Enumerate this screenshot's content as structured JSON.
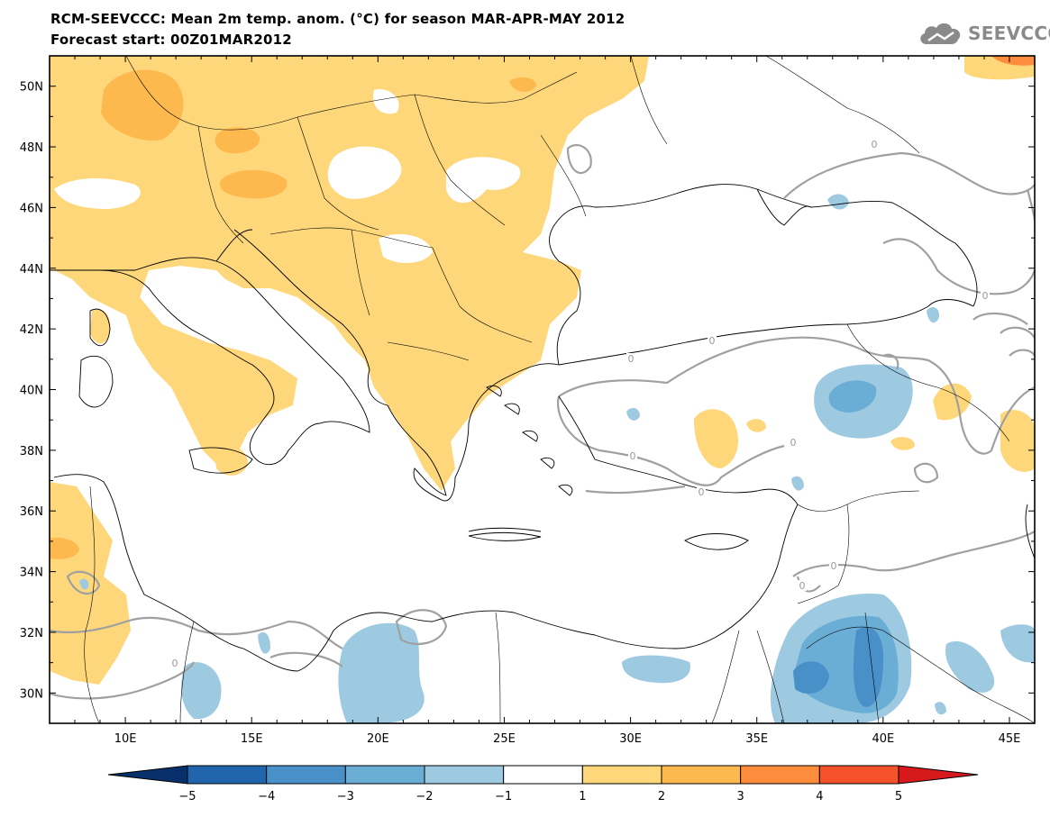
{
  "header": {
    "title_line1": "RCM-SEEVCCC: Mean 2m temp. anom. (°C) for season MAR-APR-MAY 2012",
    "title_line2": "Forecast start: 00Z01MAR2012"
  },
  "logo": {
    "text": "SEEVCCC",
    "icon": "cloud-icon",
    "color": "#8a8a8a"
  },
  "map": {
    "lon_range": [
      7,
      46
    ],
    "lat_range": [
      29,
      51
    ],
    "y_ticks": [
      "50N",
      "48N",
      "46N",
      "44N",
      "42N",
      "40N",
      "38N",
      "36N",
      "34N",
      "32N",
      "30N"
    ],
    "x_ticks": [
      "10E",
      "15E",
      "20E",
      "25E",
      "30E",
      "35E",
      "40E",
      "45E"
    ],
    "contour_label": "0",
    "contour_color": "#a0a0a0",
    "coast_color": "#000000"
  },
  "colorbar": {
    "labels": [
      "−5",
      "−4",
      "−3",
      "−2",
      "−1",
      "1",
      "2",
      "3",
      "4",
      "5"
    ],
    "colors": [
      "#08306b",
      "#2166ac",
      "#4a90c8",
      "#6aaed6",
      "#9ecae1",
      "#ffffff",
      "#fdd77a",
      "#fdb84e",
      "#fd8d3c",
      "#f4522b",
      "#d7191c"
    ]
  }
}
